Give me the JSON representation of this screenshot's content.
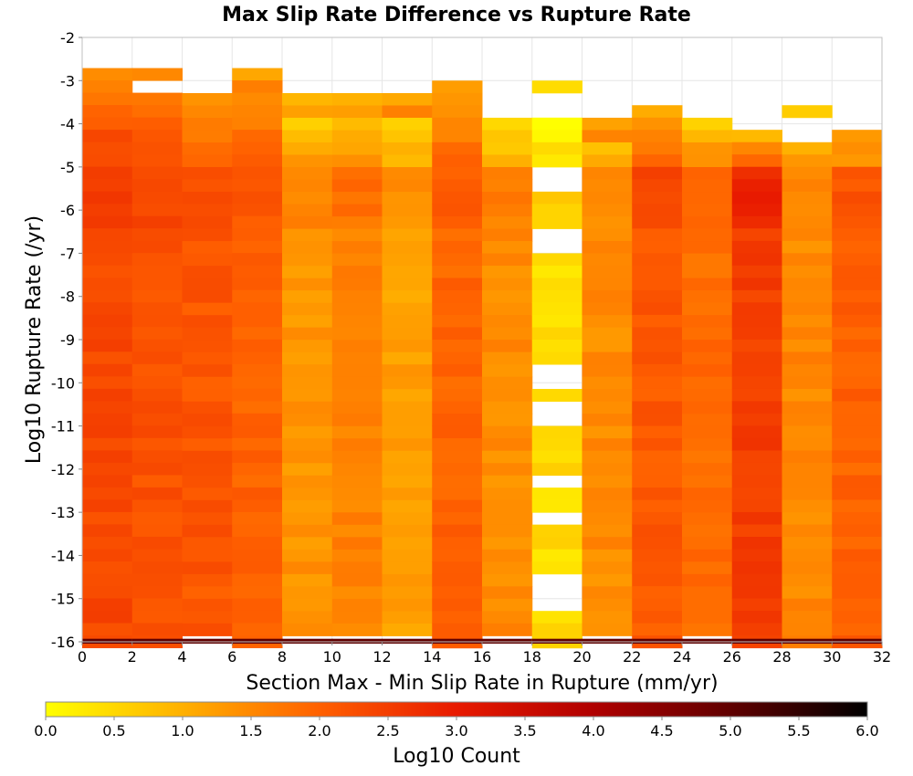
{
  "chart_data": {
    "type": "heatmap",
    "title": "Max Slip Rate Difference vs Rupture Rate",
    "xlabel": "Section Max - Min Slip Rate in Rupture (mm/yr)",
    "ylabel": "Log10 Rupture Rate (/yr)",
    "colorbar_label": "Log10 Count",
    "xlim": [
      0,
      32
    ],
    "ylim": [
      -16,
      -2
    ],
    "x_ticks": [
      "0",
      "2",
      "4",
      "6",
      "8",
      "10",
      "12",
      "14",
      "16",
      "18",
      "20",
      "22",
      "24",
      "26",
      "28",
      "30",
      "32"
    ],
    "y_ticks": [
      "-2",
      "-3",
      "-4",
      "-5",
      "-6",
      "-7",
      "-8",
      "-9",
      "-10",
      "-11",
      "-12",
      "-13",
      "-14",
      "-15",
      "-16"
    ],
    "colorbar_ticks": [
      "0.0",
      "0.5",
      "1.0",
      "1.5",
      "2.0",
      "2.5",
      "3.0",
      "3.5",
      "4.0",
      "4.5",
      "5.0",
      "5.5",
      "6.0"
    ],
    "color_range": [
      0,
      6
    ],
    "colormap": [
      "#ffff00",
      "#ffb000",
      "#ff6000",
      "#e81a00",
      "#b00000",
      "#600000",
      "#000000"
    ],
    "x_bin_width": 2,
    "y_bin_height": 0.2857,
    "bottom_row_y": -16,
    "bottom_row_value": 5.0,
    "columns": [
      {
        "x": 1,
        "y_top": -2.71,
        "avg": 2.35,
        "upper": 1.3,
        "peak": 2.6
      },
      {
        "x": 3,
        "y_top": -2.71,
        "avg": 2.2,
        "upper": 1.4,
        "peak": 2.3,
        "gaps": [
          [
            -3.29,
            -3.0
          ]
        ]
      },
      {
        "x": 5,
        "y_top": -3.29,
        "avg": 2.15,
        "upper": 1.2,
        "peak": 2.2
      },
      {
        "x": 7,
        "y_top": -2.71,
        "avg": 1.95,
        "upper": 1.2,
        "peak": 2.1
      },
      {
        "x": 9,
        "y_top": -3.29,
        "avg": 1.35,
        "upper": 1.0,
        "peak": 1.5
      },
      {
        "x": 11,
        "y_top": -3.29,
        "avg": 1.55,
        "upper": 1.0,
        "peak": 1.8
      },
      {
        "x": 13,
        "y_top": -3.29,
        "avg": 1.2,
        "upper": 1.1,
        "peak": 1.4
      },
      {
        "x": 15,
        "y_top": -3.0,
        "avg": 1.95,
        "upper": 1.1,
        "peak": 2.1
      },
      {
        "x": 17,
        "y_top": -3.86,
        "avg": 1.45,
        "upper": 0.4,
        "peak": 1.6
      },
      {
        "x": 19,
        "y_top": -3.0,
        "avg": 0.45,
        "upper": 0.6,
        "peak": 0.6,
        "gaps": [
          [
            -3.86,
            -3.29
          ],
          [
            -5.43,
            -5.14
          ],
          [
            -6.86,
            -6.57
          ],
          [
            -10.0,
            -9.43
          ],
          [
            -10.86,
            -10.57
          ],
          [
            -11.71,
            -11.43
          ],
          [
            -12.57,
            -12.0
          ],
          [
            -13.29,
            -13.0
          ],
          [
            -14.86,
            -14.57
          ],
          [
            -15.29,
            -15.0
          ]
        ]
      },
      {
        "x": 21,
        "y_top": -3.86,
        "avg": 1.45,
        "upper": 1.3,
        "peak": 1.5
      },
      {
        "x": 23,
        "y_top": -3.57,
        "avg": 2.1,
        "upper": 1.1,
        "peak": 2.3
      },
      {
        "x": 25,
        "y_top": -3.86,
        "avg": 1.85,
        "upper": 0.7,
        "peak": 2.0
      },
      {
        "x": 27,
        "y_top": -4.14,
        "avg": 2.5,
        "upper": 1.0,
        "peak": 2.85
      },
      {
        "x": 29,
        "y_top": -3.57,
        "avg": 1.5,
        "upper": 0.6,
        "peak": 1.6,
        "gaps": [
          [
            -4.43,
            -3.86
          ]
        ]
      },
      {
        "x": 31,
        "y_top": -4.14,
        "avg": 2.0,
        "upper": 1.2,
        "peak": 2.2
      }
    ]
  }
}
